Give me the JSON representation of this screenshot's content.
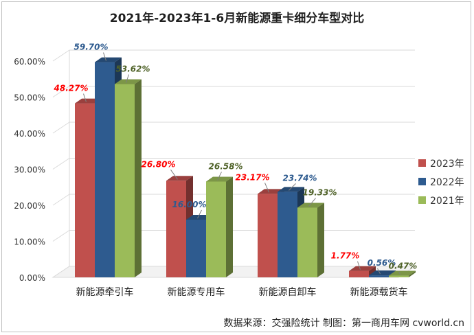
{
  "title": "2021年-2023年1-6月新能源重卡细分车型对比",
  "footer": "数据来源：交强险统计  制图：第一商用车网 cvworld.cn",
  "chart_data": {
    "type": "bar",
    "categories": [
      "新能源牵引车",
      "新能源专用车",
      "新能源自卸车",
      "新能源载货车"
    ],
    "series": [
      {
        "name": "2023年",
        "values": [
          48.27,
          26.8,
          23.17,
          1.77
        ],
        "labels": [
          "48.27%",
          "26.80%",
          "23.17%",
          "1.77%"
        ],
        "color": "#c0504d",
        "label_color": "#ff0000"
      },
      {
        "name": "2022年",
        "values": [
          59.7,
          16.0,
          23.74,
          0.56
        ],
        "labels": [
          "59.70%",
          "16.00%",
          "23.74%",
          "0.56%"
        ],
        "color": "#2e5b8f",
        "label_color": "#2e5b8f"
      },
      {
        "name": "2021年",
        "values": [
          53.62,
          26.58,
          19.33,
          0.47
        ],
        "labels": [
          "53.62%",
          "26.58%",
          "19.33%",
          "0.47%"
        ],
        "color": "#9bbb59",
        "label_color": "#4f6228"
      }
    ],
    "yticks": [
      "0.00%",
      "10.00%",
      "20.00%",
      "30.00%",
      "40.00%",
      "50.00%",
      "60.00%"
    ],
    "ylim": [
      0,
      60
    ],
    "grid": true,
    "legend_position": "right",
    "three_d": true
  }
}
